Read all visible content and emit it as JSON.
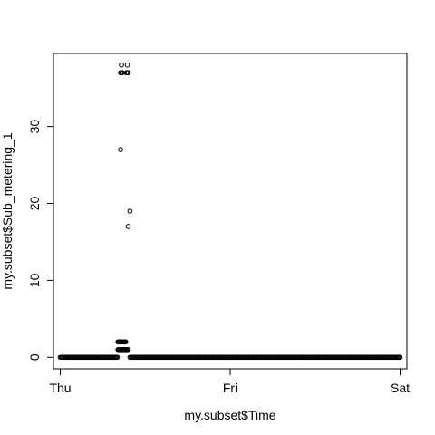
{
  "chart_data": {
    "type": "scatter",
    "title": "",
    "xlabel": "my.subset$Time",
    "ylabel": "my.subset$Sub_metering_1",
    "x_ticks": [
      "Thu",
      "Fri",
      "Sat"
    ],
    "x_tick_values": [
      0,
      1,
      2
    ],
    "xlim": [
      -0.04,
      2.04
    ],
    "y_ticks": [
      0,
      10,
      20,
      30
    ],
    "ylim": [
      -1.5,
      39.5
    ],
    "grid": false,
    "marker": "open-circle",
    "x_unit": "days since Thu 00:00",
    "series": [
      {
        "name": "",
        "points": [
          [
            0.34,
            2
          ],
          [
            0.345,
            2
          ],
          [
            0.35,
            2
          ],
          [
            0.355,
            2
          ],
          [
            0.36,
            2
          ],
          [
            0.365,
            2
          ],
          [
            0.37,
            2
          ],
          [
            0.375,
            2
          ],
          [
            0.38,
            2
          ],
          [
            0.385,
            2
          ],
          [
            0.34,
            1
          ],
          [
            0.345,
            1
          ],
          [
            0.35,
            1
          ],
          [
            0.355,
            1
          ],
          [
            0.36,
            1
          ],
          [
            0.365,
            1
          ],
          [
            0.37,
            1
          ],
          [
            0.375,
            1
          ],
          [
            0.38,
            1
          ],
          [
            0.385,
            1
          ],
          [
            0.39,
            1
          ],
          [
            0.395,
            1
          ],
          [
            0.4,
            1
          ],
          [
            0.355,
            37
          ],
          [
            0.36,
            37
          ],
          [
            0.365,
            37
          ],
          [
            0.39,
            37
          ],
          [
            0.395,
            37
          ],
          [
            0.4,
            37
          ],
          [
            0.36,
            38
          ],
          [
            0.395,
            38
          ],
          [
            0.355,
            27
          ],
          [
            0.41,
            19
          ],
          [
            0.4,
            17
          ]
        ],
        "baseline": {
          "x_ranges": [
            [
              0.0,
              0.34
            ],
            [
              0.41,
              2.0
            ]
          ],
          "y": 0
        }
      }
    ]
  }
}
